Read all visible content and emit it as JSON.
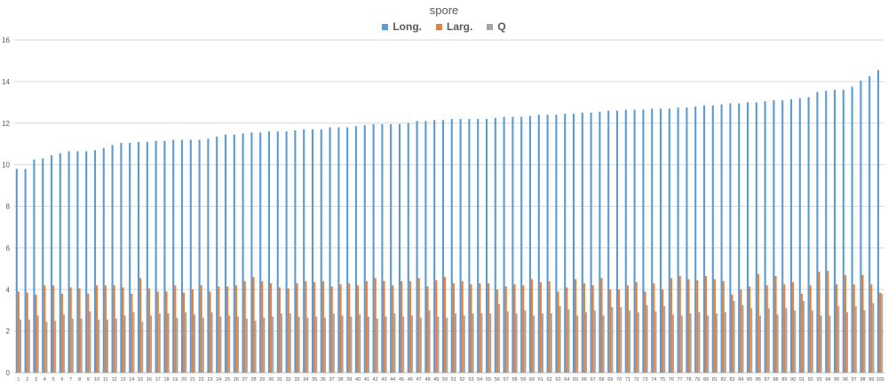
{
  "chart_data": {
    "type": "bar",
    "title": "spore",
    "xlabel": "",
    "ylabel": "",
    "ylim": [
      0,
      16
    ],
    "yticks": [
      0,
      2,
      4,
      6,
      8,
      10,
      12,
      14,
      16
    ],
    "grid": true,
    "legend_position": "top",
    "categories": [
      "1",
      "2",
      "3",
      "4",
      "5",
      "6",
      "7",
      "8",
      "9",
      "10",
      "11",
      "12",
      "13",
      "14",
      "15",
      "16",
      "17",
      "18",
      "19",
      "20",
      "21",
      "22",
      "23",
      "24",
      "25",
      "26",
      "27",
      "28",
      "29",
      "30",
      "31",
      "32",
      "33",
      "34",
      "35",
      "36",
      "37",
      "38",
      "39",
      "40",
      "41",
      "42",
      "43",
      "44",
      "45",
      "46",
      "47",
      "48",
      "49",
      "50",
      "51",
      "52",
      "53",
      "54",
      "55",
      "56",
      "57",
      "58",
      "59",
      "60",
      "61",
      "62",
      "63",
      "64",
      "65",
      "66",
      "67",
      "68",
      "69",
      "70",
      "71",
      "72",
      "73",
      "74",
      "75",
      "76",
      "77",
      "78",
      "79",
      "80",
      "81",
      "82",
      "83",
      "84",
      "85",
      "86",
      "87",
      "88",
      "89",
      "90",
      "91",
      "92",
      "93",
      "94",
      "95",
      "96",
      "97",
      "98",
      "99",
      "100"
    ],
    "series": [
      {
        "name": "Long.",
        "color": "#5b9bd5",
        "values": [
          9.8,
          9.8,
          10.25,
          10.3,
          10.45,
          10.55,
          10.65,
          10.65,
          10.65,
          10.7,
          10.8,
          10.95,
          11.05,
          11.05,
          11.1,
          11.1,
          11.15,
          11.15,
          11.2,
          11.2,
          11.2,
          11.2,
          11.25,
          11.35,
          11.45,
          11.45,
          11.5,
          11.55,
          11.55,
          11.6,
          11.6,
          11.6,
          11.65,
          11.7,
          11.7,
          11.7,
          11.8,
          11.8,
          11.8,
          11.85,
          11.9,
          11.95,
          11.95,
          11.95,
          11.95,
          12.0,
          12.1,
          12.1,
          12.15,
          12.15,
          12.2,
          12.2,
          12.2,
          12.2,
          12.2,
          12.25,
          12.3,
          12.3,
          12.3,
          12.35,
          12.4,
          12.4,
          12.4,
          12.45,
          12.45,
          12.5,
          12.5,
          12.55,
          12.6,
          12.6,
          12.65,
          12.65,
          12.65,
          12.7,
          12.7,
          12.7,
          12.75,
          12.75,
          12.8,
          12.85,
          12.85,
          12.9,
          12.95,
          12.95,
          13.0,
          13.0,
          13.05,
          13.1,
          13.1,
          13.15,
          13.2,
          13.25,
          13.5,
          13.55,
          13.6,
          13.6,
          13.75,
          14.05,
          14.25,
          14.55
        ]
      },
      {
        "name": "Larg.",
        "color": "#ed7d31",
        "values": [
          3.9,
          3.85,
          3.75,
          4.2,
          4.2,
          3.8,
          4.1,
          4.05,
          3.8,
          4.2,
          4.2,
          4.2,
          4.1,
          3.8,
          4.55,
          4.05,
          3.9,
          3.9,
          4.2,
          3.85,
          4.0,
          4.2,
          3.9,
          4.15,
          4.15,
          4.2,
          4.4,
          4.6,
          4.4,
          4.3,
          4.1,
          4.05,
          4.3,
          4.4,
          4.35,
          4.4,
          4.15,
          4.25,
          4.3,
          4.2,
          4.4,
          4.55,
          4.4,
          4.2,
          4.4,
          4.4,
          4.55,
          4.15,
          4.45,
          4.6,
          4.3,
          4.4,
          4.25,
          4.3,
          4.3,
          4.0,
          4.15,
          4.25,
          4.2,
          4.5,
          4.35,
          4.4,
          3.9,
          4.1,
          4.5,
          4.3,
          4.2,
          4.55,
          4.0,
          4.0,
          4.2,
          4.35,
          3.9,
          4.3,
          4.0,
          4.55,
          4.65,
          4.5,
          4.45,
          4.65,
          4.5,
          4.4,
          3.75,
          4.0,
          4.15,
          4.75,
          4.2,
          4.65,
          4.25,
          4.35,
          3.8,
          4.2,
          4.85,
          4.9,
          4.25,
          4.7,
          4.25,
          4.7,
          4.25,
          3.85
        ]
      },
      {
        "name": "Q",
        "color": "#a5a5a5",
        "values": [
          2.55,
          2.55,
          2.75,
          2.45,
          2.5,
          2.8,
          2.6,
          2.6,
          2.95,
          2.55,
          2.55,
          2.6,
          2.75,
          2.9,
          2.45,
          2.75,
          2.85,
          2.85,
          2.65,
          2.9,
          2.8,
          2.65,
          2.9,
          2.7,
          2.75,
          2.7,
          2.6,
          2.5,
          2.65,
          2.7,
          2.85,
          2.85,
          2.7,
          2.65,
          2.7,
          2.65,
          2.85,
          2.75,
          2.7,
          2.8,
          2.7,
          2.6,
          2.7,
          2.85,
          2.7,
          2.75,
          2.65,
          3.0,
          2.7,
          2.65,
          2.85,
          2.75,
          2.85,
          2.85,
          2.85,
          3.3,
          2.95,
          2.85,
          3.0,
          2.75,
          2.85,
          2.85,
          3.2,
          3.05,
          2.75,
          2.9,
          3.0,
          2.75,
          3.15,
          3.15,
          3.0,
          2.9,
          3.25,
          2.95,
          3.2,
          2.8,
          2.75,
          2.85,
          2.9,
          2.75,
          2.85,
          2.9,
          3.45,
          3.25,
          3.1,
          2.75,
          3.1,
          2.8,
          3.1,
          3.0,
          3.45,
          3.0,
          2.75,
          2.75,
          3.2,
          2.9,
          3.2,
          3.0,
          3.35,
          3.8
        ]
      }
    ]
  }
}
